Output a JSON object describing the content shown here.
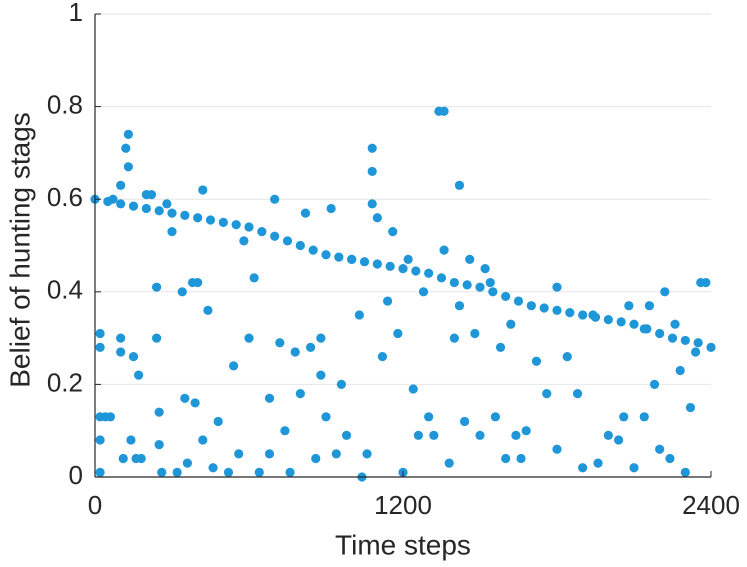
{
  "chart_data": {
    "type": "scatter",
    "xlabel": "Time steps",
    "ylabel": "Belief of hunting stags",
    "color": "#1e96d8",
    "xlim": [
      0,
      2400
    ],
    "xticks": [
      0,
      1200,
      2400
    ],
    "ylim": [
      0,
      1
    ],
    "yticks": [
      0,
      0.2,
      0.4,
      0.6,
      0.8,
      1
    ],
    "grid": true,
    "x": [
      0,
      50,
      100,
      150,
      200,
      250,
      300,
      350,
      400,
      450,
      500,
      550,
      600,
      650,
      700,
      750,
      800,
      850,
      900,
      950,
      1000,
      1050,
      1100,
      1150,
      1200,
      1250,
      1300,
      1350,
      1400,
      1450,
      1500,
      1550,
      1600,
      1650,
      1700,
      1750,
      1800,
      1850,
      1900,
      1950,
      2000,
      2050,
      2100,
      2150,
      2200,
      2250,
      2300,
      2350,
      2400,
      20,
      20,
      20,
      20,
      20,
      40,
      60,
      70,
      100,
      100,
      100,
      110,
      120,
      130,
      130,
      140,
      150,
      160,
      170,
      180,
      200,
      220,
      240,
      240,
      250,
      250,
      260,
      280,
      300,
      320,
      340,
      350,
      360,
      380,
      390,
      400,
      420,
      420,
      440,
      460,
      480,
      520,
      540,
      560,
      580,
      600,
      620,
      640,
      680,
      680,
      700,
      720,
      740,
      760,
      780,
      800,
      820,
      840,
      860,
      880,
      880,
      900,
      920,
      940,
      960,
      980,
      1000,
      1030,
      1040,
      1060,
      1080,
      1080,
      1080,
      1100,
      1120,
      1140,
      1160,
      1180,
      1200,
      1220,
      1240,
      1260,
      1280,
      1300,
      1320,
      1340,
      1360,
      1360,
      1380,
      1400,
      1420,
      1420,
      1440,
      1460,
      1480,
      1500,
      1520,
      1540,
      1560,
      1580,
      1600,
      1620,
      1640,
      1660,
      1680,
      1720,
      1760,
      1800,
      1800,
      1840,
      1880,
      1900,
      1940,
      1960,
      2000,
      2040,
      2060,
      2080,
      2100,
      2140,
      2140,
      2160,
      2180,
      2200,
      2220,
      2240,
      2260,
      2280,
      2300,
      2320,
      2340,
      2360,
      2380
    ],
    "values": [
      0.6,
      0.595,
      0.59,
      0.585,
      0.58,
      0.575,
      0.57,
      0.565,
      0.56,
      0.555,
      0.55,
      0.545,
      0.54,
      0.53,
      0.52,
      0.51,
      0.5,
      0.49,
      0.48,
      0.475,
      0.47,
      0.465,
      0.46,
      0.455,
      0.45,
      0.445,
      0.44,
      0.43,
      0.42,
      0.415,
      0.41,
      0.4,
      0.39,
      0.38,
      0.37,
      0.365,
      0.36,
      0.355,
      0.35,
      0.345,
      0.34,
      0.335,
      0.33,
      0.32,
      0.31,
      0.3,
      0.295,
      0.29,
      0.28,
      0.31,
      0.28,
      0.13,
      0.08,
      0.01,
      0.13,
      0.13,
      0.6,
      0.63,
      0.3,
      0.27,
      0.04,
      0.71,
      0.74,
      0.67,
      0.08,
      0.26,
      0.04,
      0.22,
      0.04,
      0.61,
      0.61,
      0.41,
      0.3,
      0.14,
      0.07,
      0.01,
      0.59,
      0.53,
      0.01,
      0.4,
      0.17,
      0.03,
      0.42,
      0.16,
      0.42,
      0.62,
      0.08,
      0.36,
      0.02,
      0.12,
      0.01,
      0.24,
      0.05,
      0.51,
      0.3,
      0.43,
      0.01,
      0.17,
      0.05,
      0.6,
      0.29,
      0.1,
      0.01,
      0.27,
      0.18,
      0.57,
      0.28,
      0.04,
      0.3,
      0.22,
      0.13,
      0.58,
      0.05,
      0.2,
      0.09,
      0.47,
      0.35,
      0.0,
      0.05,
      0.71,
      0.66,
      0.59,
      0.56,
      0.26,
      0.38,
      0.53,
      0.31,
      0.01,
      0.47,
      0.19,
      0.09,
      0.4,
      0.13,
      0.09,
      0.79,
      0.79,
      0.49,
      0.03,
      0.3,
      0.63,
      0.37,
      0.12,
      0.47,
      0.31,
      0.09,
      0.45,
      0.42,
      0.13,
      0.28,
      0.04,
      0.33,
      0.09,
      0.04,
      0.1,
      0.25,
      0.18,
      0.41,
      0.06,
      0.26,
      0.18,
      0.02,
      0.35,
      0.03,
      0.09,
      0.08,
      0.13,
      0.37,
      0.02,
      0.32,
      0.13,
      0.37,
      0.2,
      0.06,
      0.4,
      0.04,
      0.33,
      0.23,
      0.01,
      0.15,
      0.27,
      0.42,
      0.42
    ]
  }
}
